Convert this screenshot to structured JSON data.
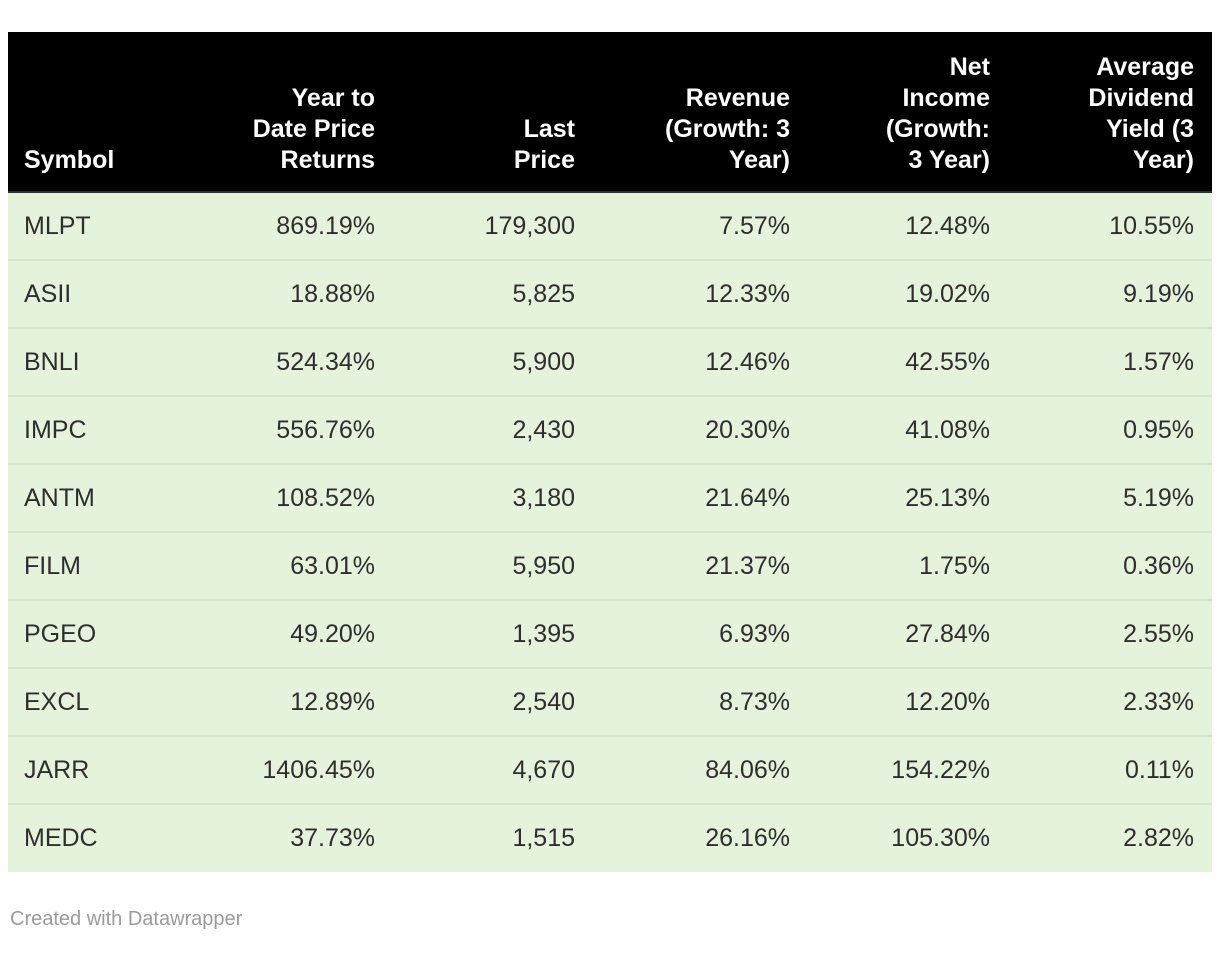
{
  "chart_data": {
    "type": "table",
    "title": "",
    "columns": [
      "Symbol",
      "Year to Date Price Returns",
      "Last Price",
      "Revenue (Growth: 3 Year)",
      "Net Income (Growth: 3 Year)",
      "Average Dividend Yield (3 Year)"
    ],
    "header_display": [
      "Symbol",
      "Year to\nDate Price\nReturns",
      "Last\nPrice",
      "Revenue\n(Growth: 3\nYear)",
      "Net\nIncome\n(Growth:\n3 Year)",
      "Average\nDividend\nYield (3\nYear)"
    ],
    "rows": [
      [
        "MLPT",
        "869.19%",
        "179,300",
        "7.57%",
        "12.48%",
        "10.55%"
      ],
      [
        "ASII",
        "18.88%",
        "5,825",
        "12.33%",
        "19.02%",
        "9.19%"
      ],
      [
        "BNLI",
        "524.34%",
        "5,900",
        "12.46%",
        "42.55%",
        "1.57%"
      ],
      [
        "IMPC",
        "556.76%",
        "2,430",
        "20.30%",
        "41.08%",
        "0.95%"
      ],
      [
        "ANTM",
        "108.52%",
        "3,180",
        "21.64%",
        "25.13%",
        "5.19%"
      ],
      [
        "FILM",
        "63.01%",
        "5,950",
        "21.37%",
        "1.75%",
        "0.36%"
      ],
      [
        "PGEO",
        "49.20%",
        "1,395",
        "6.93%",
        "27.84%",
        "2.55%"
      ],
      [
        "EXCL",
        "12.89%",
        "2,540",
        "8.73%",
        "12.20%",
        "2.33%"
      ],
      [
        "JARR",
        "1406.45%",
        "4,670",
        "84.06%",
        "154.22%",
        "0.11%"
      ],
      [
        "MEDC",
        "37.73%",
        "1,515",
        "26.16%",
        "105.30%",
        "2.82%"
      ]
    ],
    "layout": {
      "header_align": "right_except_first",
      "cell_align": "right_except_first",
      "grid": "horizontal_dividers_only"
    }
  },
  "footer": {
    "credit": "Created with Datawrapper"
  },
  "colors": {
    "header_bg": "#000000",
    "header_text": "#ffffff",
    "row_bg": "#e5f2dc",
    "row_divider": "#d9e3d1",
    "cell_text": "#2e2e2e",
    "credit_text": "#9b9b9b",
    "page_bg": "#ffffff"
  }
}
